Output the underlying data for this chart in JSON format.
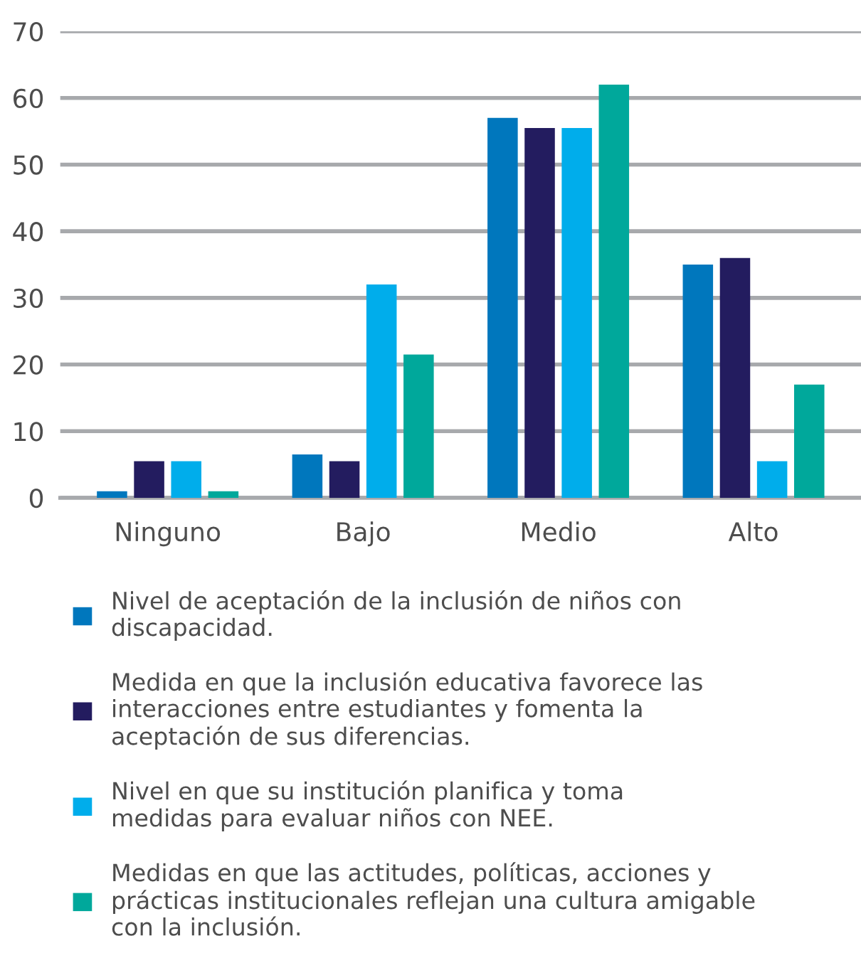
{
  "chart_data": {
    "type": "bar",
    "categories": [
      "Ninguno",
      "Bajo",
      "Medio",
      "Alto"
    ],
    "series": [
      {
        "name": "Nivel de aceptación de la inclusión de niños con\ndiscapacidad.",
        "color": "#0077bd",
        "values": [
          1,
          6.5,
          57,
          35
        ]
      },
      {
        "name": "Medida en que la inclusión educativa favorece las\ninteracciones entre estudiantes y fomenta la\naceptación de sus diferencias.",
        "color": "#231c5f",
        "values": [
          5.5,
          5.5,
          55.5,
          36
        ]
      },
      {
        "name": "Nivel en que su institución planifica y toma\nmedidas para evaluar niños con NEE.",
        "color": "#00adeb",
        "values": [
          5.5,
          32,
          55.5,
          5.5
        ]
      },
      {
        "name": "Medidas en que las actitudes, políticas, acciones y\nprácticas institucionales reflejan una cultura amigable\ncon la inclusión.",
        "color": "#00a89b",
        "values": [
          1,
          21.5,
          62,
          17
        ]
      }
    ],
    "ylim": [
      0,
      70
    ],
    "yticks": [
      0,
      10,
      20,
      30,
      40,
      50,
      60,
      70
    ],
    "grid": "y",
    "legend": "bottom"
  }
}
